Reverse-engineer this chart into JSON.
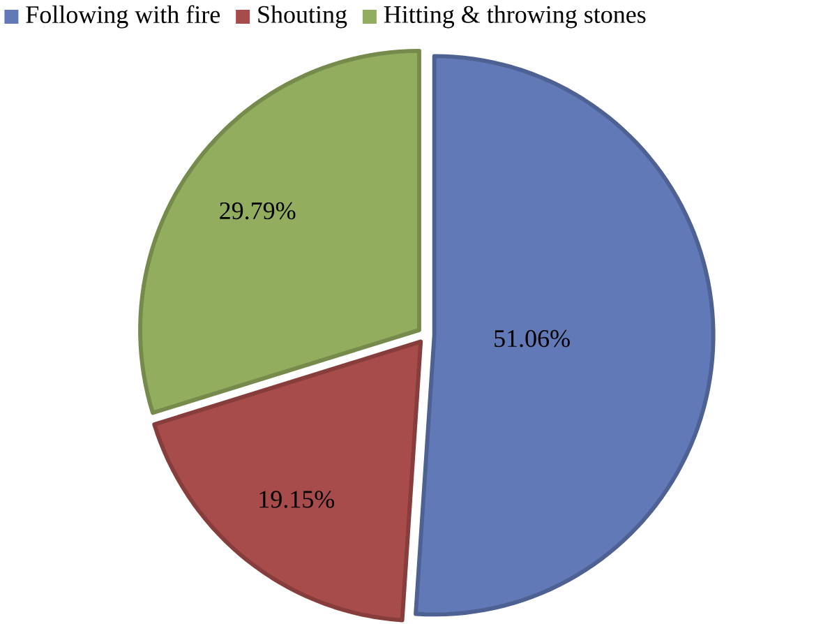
{
  "chart_data": {
    "type": "pie",
    "categories": [
      "Following with fire",
      "Shouting",
      "Hitting & throwing stones"
    ],
    "values": [
      51.06,
      19.15,
      29.79
    ],
    "colors": [
      "#6279b8",
      "#a84c4b",
      "#93ad5f"
    ],
    "value_labels": [
      "51.06%",
      "19.15%",
      "29.79%"
    ],
    "legend": "top"
  }
}
